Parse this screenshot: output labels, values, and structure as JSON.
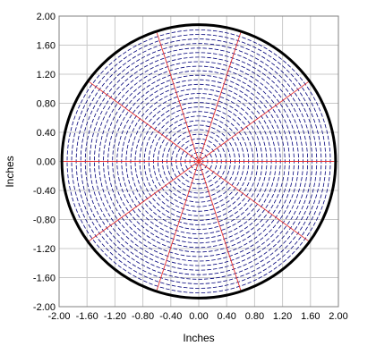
{
  "chart_data": {
    "type": "scatter",
    "xlabel": "Inches",
    "ylabel": "Inches",
    "xlim": [
      -2.0,
      2.0
    ],
    "ylim": [
      -2.0,
      2.0
    ],
    "grid": true,
    "x_ticks": [
      "-2.00",
      "-1.60",
      "-1.20",
      "-0.80",
      "-0.40",
      "0.00",
      "0.40",
      "0.80",
      "1.20",
      "1.60",
      "2.00"
    ],
    "y_ticks": [
      "2.00",
      "1.60",
      "1.20",
      "0.80",
      "0.40",
      "0.00",
      "-0.40",
      "-0.80",
      "-1.20",
      "-1.60",
      "-2.00"
    ],
    "x_tick_values": [
      -2.0,
      -1.6,
      -1.2,
      -0.8,
      -0.4,
      0.0,
      0.4,
      0.8,
      1.2,
      1.6,
      2.0
    ],
    "y_tick_values": [
      2.0,
      1.6,
      1.2,
      0.8,
      0.4,
      0.0,
      -0.4,
      -0.8,
      -1.2,
      -1.6,
      -2.0
    ],
    "boundary_circle": {
      "center": [
        0.0,
        0.0
      ],
      "radius": 1.96
    },
    "radial_lines": {
      "center": [
        0.0,
        0.0
      ],
      "radius": 1.94,
      "angles_deg": [
        0,
        36,
        72,
        108,
        144,
        180,
        216,
        252,
        288,
        324
      ]
    },
    "dash_field": {
      "ring_spacing": 0.065,
      "dash_spacing": 0.085,
      "radius_max": 1.9
    },
    "colors": {
      "grid": "#c8c8c8",
      "boundary": "#000000",
      "dashes": "#00007a",
      "radial": "#e83030",
      "frame": "#808080"
    }
  }
}
